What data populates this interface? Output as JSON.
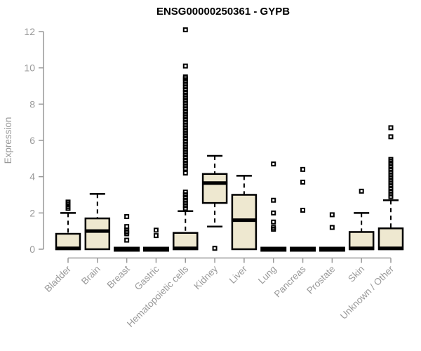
{
  "chart_data": {
    "type": "boxplot",
    "title": "ENSG00000250361 - GYPB",
    "xlabel": "",
    "ylabel": "Expression",
    "ylim": [
      0,
      12
    ],
    "yticks": [
      0,
      2,
      4,
      6,
      8,
      10,
      12
    ],
    "grid": false,
    "legend": "none",
    "categories": [
      "Bladder",
      "Brain",
      "Breast",
      "Gastric",
      "Hematopoietic cells",
      "Kidney",
      "Liver",
      "Lung",
      "Pancreas",
      "Prostate",
      "Skin",
      "Unknown / Other"
    ],
    "series": [
      {
        "category": "Bladder",
        "low": 0,
        "q1": 0,
        "median": 0.05,
        "q3": 0.85,
        "high": 2.0,
        "outliers": [
          2.25,
          2.35,
          2.5,
          2.6
        ]
      },
      {
        "category": "Brain",
        "low": 0,
        "q1": 0,
        "median": 1.0,
        "q3": 1.7,
        "high": 3.05,
        "outliers": []
      },
      {
        "category": "Breast",
        "low": 0,
        "q1": 0,
        "median": 0,
        "q3": 0,
        "high": 0,
        "outliers": [
          0.5,
          0.85,
          0.95,
          1.05,
          1.25,
          1.8
        ]
      },
      {
        "category": "Gastric",
        "low": 0,
        "q1": 0,
        "median": 0,
        "q3": 0,
        "high": 0,
        "outliers": [
          0.75,
          1.05
        ]
      },
      {
        "category": "Hematopoietic cells",
        "low": 0,
        "q1": 0,
        "median": 0.05,
        "q3": 0.9,
        "high": 2.1,
        "outliers": [
          2.25,
          2.4,
          2.55,
          2.7,
          2.85,
          3.0,
          3.15,
          4.2,
          4.45,
          4.6,
          4.75,
          4.9,
          5.05,
          5.2,
          5.35,
          5.5,
          5.65,
          5.8,
          5.95,
          6.1,
          6.25,
          6.4,
          6.55,
          6.7,
          6.85,
          7.0,
          7.15,
          7.3,
          7.45,
          7.6,
          7.75,
          7.9,
          8.05,
          8.2,
          8.35,
          8.5,
          8.65,
          8.8,
          8.95,
          9.1,
          9.25,
          9.4,
          9.5,
          10.1,
          12.1
        ]
      },
      {
        "category": "Kidney",
        "low": 1.25,
        "q1": 2.55,
        "median": 3.65,
        "q3": 4.15,
        "high": 5.15,
        "outliers": [
          0.05
        ]
      },
      {
        "category": "Liver",
        "low": 0,
        "q1": 0,
        "median": 1.6,
        "q3": 3.0,
        "high": 4.05,
        "outliers": []
      },
      {
        "category": "Lung",
        "low": 0,
        "q1": 0,
        "median": 0,
        "q3": 0,
        "high": 0,
        "outliers": [
          1.1,
          1.2,
          1.5,
          2.0,
          2.7,
          4.7
        ]
      },
      {
        "category": "Pancreas",
        "low": 0,
        "q1": 0,
        "median": 0,
        "q3": 0,
        "high": 0,
        "outliers": [
          2.15,
          3.7,
          4.4
        ]
      },
      {
        "category": "Prostate",
        "low": 0,
        "q1": 0,
        "median": 0,
        "q3": 0,
        "high": 0,
        "outliers": [
          1.2,
          1.9
        ]
      },
      {
        "category": "Skin",
        "low": 0,
        "q1": 0,
        "median": 0.05,
        "q3": 0.95,
        "high": 2.0,
        "outliers": [
          3.2
        ]
      },
      {
        "category": "Unknown / Other",
        "low": 0,
        "q1": 0,
        "median": 0.05,
        "q3": 1.15,
        "high": 2.7,
        "outliers": [
          2.9,
          3.05,
          3.2,
          3.35,
          3.5,
          3.65,
          3.8,
          3.95,
          4.1,
          4.25,
          4.4,
          4.55,
          4.7,
          4.85,
          4.95,
          6.2,
          6.7
        ]
      }
    ]
  },
  "style": {
    "box_fill": "#EEE8D0",
    "box_stroke": "#000000",
    "median_color": "#000000",
    "outlier_color": "#000000",
    "axis_color": "#999999",
    "tick_label_color": "#999999",
    "title_color": "#000000"
  }
}
